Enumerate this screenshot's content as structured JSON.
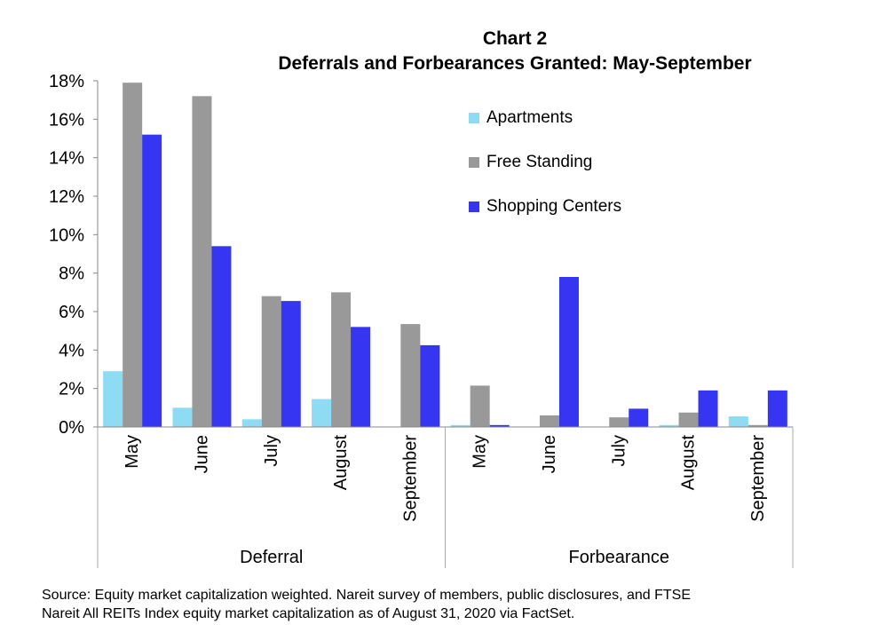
{
  "title_line1": "Chart 2",
  "title_line2": "Deferrals and Forbearances Granted: May-September",
  "source_line1": "Source: Equity market capitalization weighted. Nareit survey of members, public disclosures, and FTSE",
  "source_line2": "Nareit All REITs Index equity market capitalization as of August 31, 2020 via FactSet.",
  "colors": {
    "Apartments": "#8ddcf4",
    "Free Standing": "#999999",
    "Shopping Centers": "#3535f2"
  },
  "chart_data": {
    "type": "bar",
    "title": "Chart 2 Deferrals and Forbearances Granted: May-September",
    "groups": [
      {
        "label": "Deferral",
        "categories": [
          "May",
          "June",
          "July",
          "August",
          "September"
        ]
      },
      {
        "label": "Forbearance",
        "categories": [
          "May",
          "June",
          "July",
          "August",
          "September"
        ]
      }
    ],
    "categories": [
      "May",
      "June",
      "July",
      "August",
      "September",
      "May",
      "June",
      "July",
      "August",
      "September"
    ],
    "series": [
      {
        "name": "Apartments",
        "values": [
          2.9,
          1.0,
          0.4,
          1.45,
          0.0,
          0.1,
          0.0,
          0.0,
          0.1,
          0.55
        ]
      },
      {
        "name": "Free Standing",
        "values": [
          17.9,
          17.2,
          6.8,
          7.0,
          5.35,
          2.15,
          0.6,
          0.5,
          0.75,
          0.1
        ]
      },
      {
        "name": "Shopping Centers",
        "values": [
          15.2,
          9.4,
          6.55,
          5.2,
          4.25,
          0.1,
          7.8,
          0.95,
          1.9,
          1.9
        ]
      }
    ],
    "y_ticks": [
      "0%",
      "2%",
      "4%",
      "6%",
      "8%",
      "10%",
      "12%",
      "14%",
      "16%",
      "18%"
    ],
    "ylim": [
      0,
      18
    ],
    "xlabel": "",
    "ylabel": "",
    "legend": "top-right",
    "grid": false
  }
}
